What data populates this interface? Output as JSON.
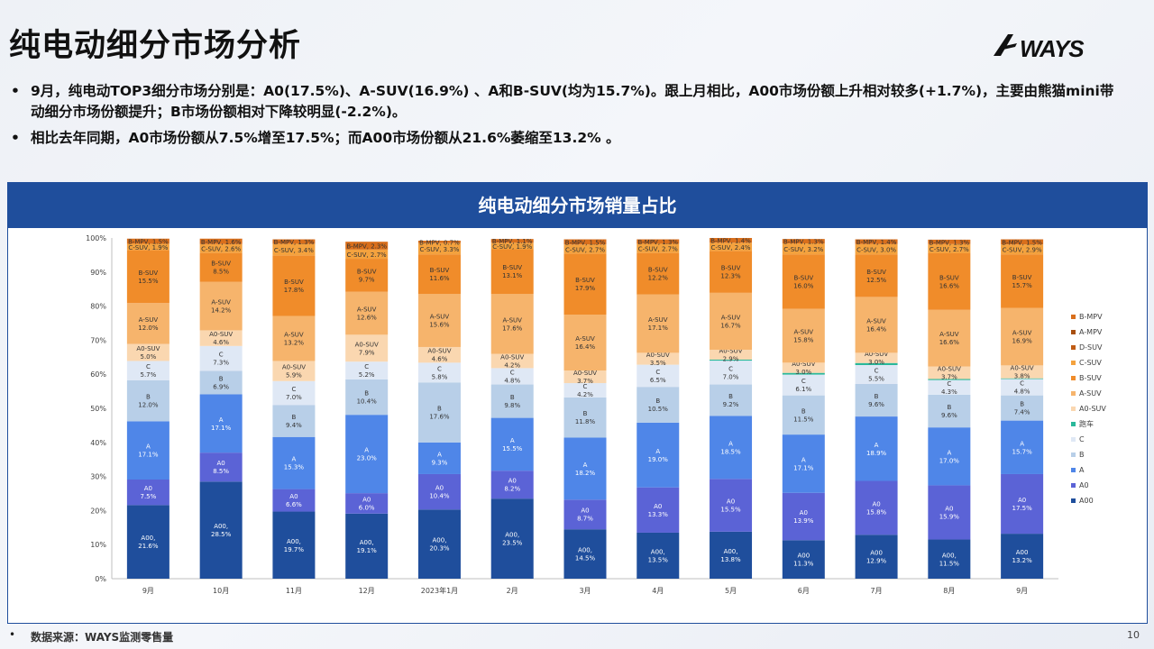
{
  "page": {
    "title": "纯电动细分市场分析",
    "logo_text": "WAYS",
    "bullets": [
      "9月，纯电动TOP3细分市场分别是：A0(17.5%)、A-SUV(16.9%) 、A和B-SUV(均为15.7%)。跟上月相比，A00市场份额上升相对较多(+1.7%)，主要由熊猫mini带动细分市场份额提升；B市场份额相对下降较明显(-2.2%)。",
      "相比去年同期，A0市场份额从7.5%增至17.5%；而A00市场份额从21.6%萎缩至13.2% 。"
    ],
    "footer_source": "数据来源：WAYS监测零售量",
    "page_number": "10"
  },
  "chart_data": {
    "type": "bar",
    "stacked": true,
    "title": "纯电动细分市场销量占比",
    "categories": [
      "9月",
      "10月",
      "11月",
      "12月",
      "2023年1月",
      "2月",
      "3月",
      "4月",
      "5月",
      "6月",
      "7月",
      "8月",
      "9月"
    ],
    "ylim": [
      0,
      100
    ],
    "y_ticks": [
      "0%",
      "10%",
      "20%",
      "30%",
      "40%",
      "50%",
      "60%",
      "70%",
      "80%",
      "90%",
      "100%"
    ],
    "gridlines": false,
    "legend_position": "right",
    "series": [
      {
        "name": "A00",
        "label": "A00",
        "color": "#1f4e9c",
        "values": [
          21.6,
          28.5,
          19.7,
          19.1,
          20.3,
          23.5,
          14.5,
          13.5,
          13.8,
          11.3,
          12.9,
          11.5,
          13.2
        ],
        "labels": [
          "A00,\n21.6%",
          "A00,\n28.5%",
          "A00,\n19.7%",
          "A00,\n19.1%",
          "A00,\n20.3%",
          "A00,\n23.5%",
          "A00,\n14.5%",
          "A00,\n13.5%",
          "A00,\n13.8%",
          "A00\n11.3%",
          "A00\n12.9%",
          "A00,\n11.5%",
          "A00\n13.2%"
        ]
      },
      {
        "name": "A0",
        "label": "A0",
        "color": "#5b63d6",
        "values": [
          7.5,
          8.5,
          6.6,
          6.0,
          10.4,
          8.2,
          8.7,
          13.3,
          15.5,
          13.9,
          15.8,
          15.9,
          17.5
        ]
      },
      {
        "name": "A",
        "label": "A",
        "color": "#4f86e8",
        "values": [
          17.1,
          17.1,
          15.3,
          23.0,
          9.3,
          15.5,
          18.2,
          19.0,
          18.5,
          17.1,
          18.9,
          17.0,
          15.7
        ]
      },
      {
        "name": "B",
        "label": "B",
        "color": "#b8cfe8",
        "values": [
          12.0,
          6.9,
          9.4,
          10.4,
          17.6,
          9.8,
          11.8,
          10.5,
          9.2,
          11.5,
          9.6,
          9.6,
          7.4
        ]
      },
      {
        "name": "C",
        "label": "C",
        "color": "#dfe8f5",
        "values": [
          5.7,
          7.3,
          7.0,
          5.2,
          5.8,
          4.8,
          4.2,
          6.5,
          7.0,
          6.1,
          5.5,
          4.3,
          4.8
        ]
      },
      {
        "name": "跑车",
        "label": "跑车",
        "color": "#2ab89a",
        "values": [
          0,
          0,
          0,
          0,
          0,
          0,
          0,
          0,
          0.3,
          0.5,
          0.6,
          0.3,
          0.2
        ],
        "labels": [
          "",
          "",
          "",
          "",
          "",
          "",
          "",
          "",
          "",
          "",
          "跑车, 0.6%",
          "跑车, 0.3%",
          "跑车, 0.2%"
        ]
      },
      {
        "name": "A0-SUV",
        "label": "A0-SUV",
        "color": "#fad7b0",
        "values": [
          5.0,
          4.6,
          5.9,
          7.9,
          4.6,
          4.2,
          3.7,
          3.5,
          2.9,
          3.0,
          3.0,
          3.7,
          3.8
        ]
      },
      {
        "name": "A-SUV",
        "label": "A-SUV",
        "color": "#f6b46c",
        "values": [
          12.0,
          14.2,
          13.2,
          12.6,
          15.6,
          17.6,
          16.4,
          17.1,
          16.7,
          15.8,
          16.4,
          16.6,
          16.9
        ]
      },
      {
        "name": "B-SUV",
        "label": "B-SUV",
        "color": "#f08c2a",
        "values": [
          15.5,
          8.5,
          17.8,
          9.7,
          11.6,
          13.1,
          17.9,
          12.2,
          12.3,
          16.0,
          12.5,
          16.6,
          15.7
        ]
      },
      {
        "name": "C-SUV",
        "label": "C-SUV",
        "color": "#f4a23e",
        "values": [
          1.9,
          2.6,
          3.4,
          2.7,
          3.3,
          1.9,
          2.7,
          2.7,
          2.4,
          3.2,
          3.0,
          2.7,
          2.9
        ]
      },
      {
        "name": "D-SUV",
        "label": "D-SUV",
        "color": "#c05c14",
        "values": [
          0,
          0,
          0,
          0,
          0,
          0,
          0,
          0,
          0,
          0,
          0,
          0,
          0
        ]
      },
      {
        "name": "A-MPV",
        "label": "A-MPV",
        "color": "#a84f10",
        "values": [
          0,
          0,
          0,
          0,
          0,
          0,
          0,
          0,
          0,
          0,
          0,
          0,
          0
        ]
      },
      {
        "name": "B-MPV",
        "label": "B-MPV",
        "color": "#d96f1c",
        "values": [
          1.5,
          1.6,
          1.3,
          2.3,
          0.7,
          1.1,
          1.5,
          1.3,
          1.4,
          1.3,
          1.4,
          1.3,
          1.5
        ]
      }
    ],
    "legend_order": [
      "B-MPV",
      "A-MPV",
      "D-SUV",
      "C-SUV",
      "B-SUV",
      "A-SUV",
      "A0-SUV",
      "跑车",
      "C",
      "B",
      "A",
      "A0",
      "A00"
    ]
  }
}
